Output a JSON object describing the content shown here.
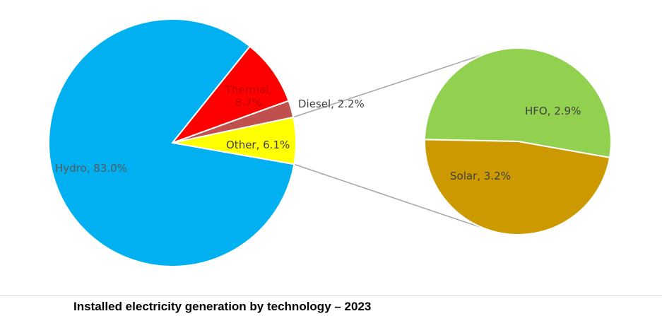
{
  "caption": "Installed electricity generation by technology – 2023",
  "chart_data": {
    "type": "pie",
    "subtype": "pie-of-pie",
    "slices": [
      {
        "name": "Hydro",
        "value": 83.0,
        "label": "Hydro, 83.0%",
        "color": "#00b0f0",
        "text_color": "#595959"
      },
      {
        "name": "Thermal",
        "value": 8.7,
        "label": "Thermal, 8.7%",
        "color": "#ff0000",
        "text_color": "#c00000"
      },
      {
        "name": "Diesel",
        "value": 2.2,
        "label": "Diesel, 2.2%",
        "color": "#c0504d",
        "text_color": "#404040"
      },
      {
        "name": "Other",
        "value": 6.1,
        "label": "Other, 6.1%",
        "color": "#ffff00",
        "text_color": "#404040"
      }
    ],
    "secondary": {
      "parent": "Other",
      "slices": [
        {
          "name": "HFO",
          "value": 2.9,
          "label": "HFO, 2.9%",
          "color": "#cc9900",
          "text_color": "#404040"
        },
        {
          "name": "Solar",
          "value": 3.2,
          "label": "Solar, 3.2%",
          "color": "#92d050",
          "text_color": "#404040"
        }
      ]
    },
    "connector_color": "#a6a6a6"
  }
}
